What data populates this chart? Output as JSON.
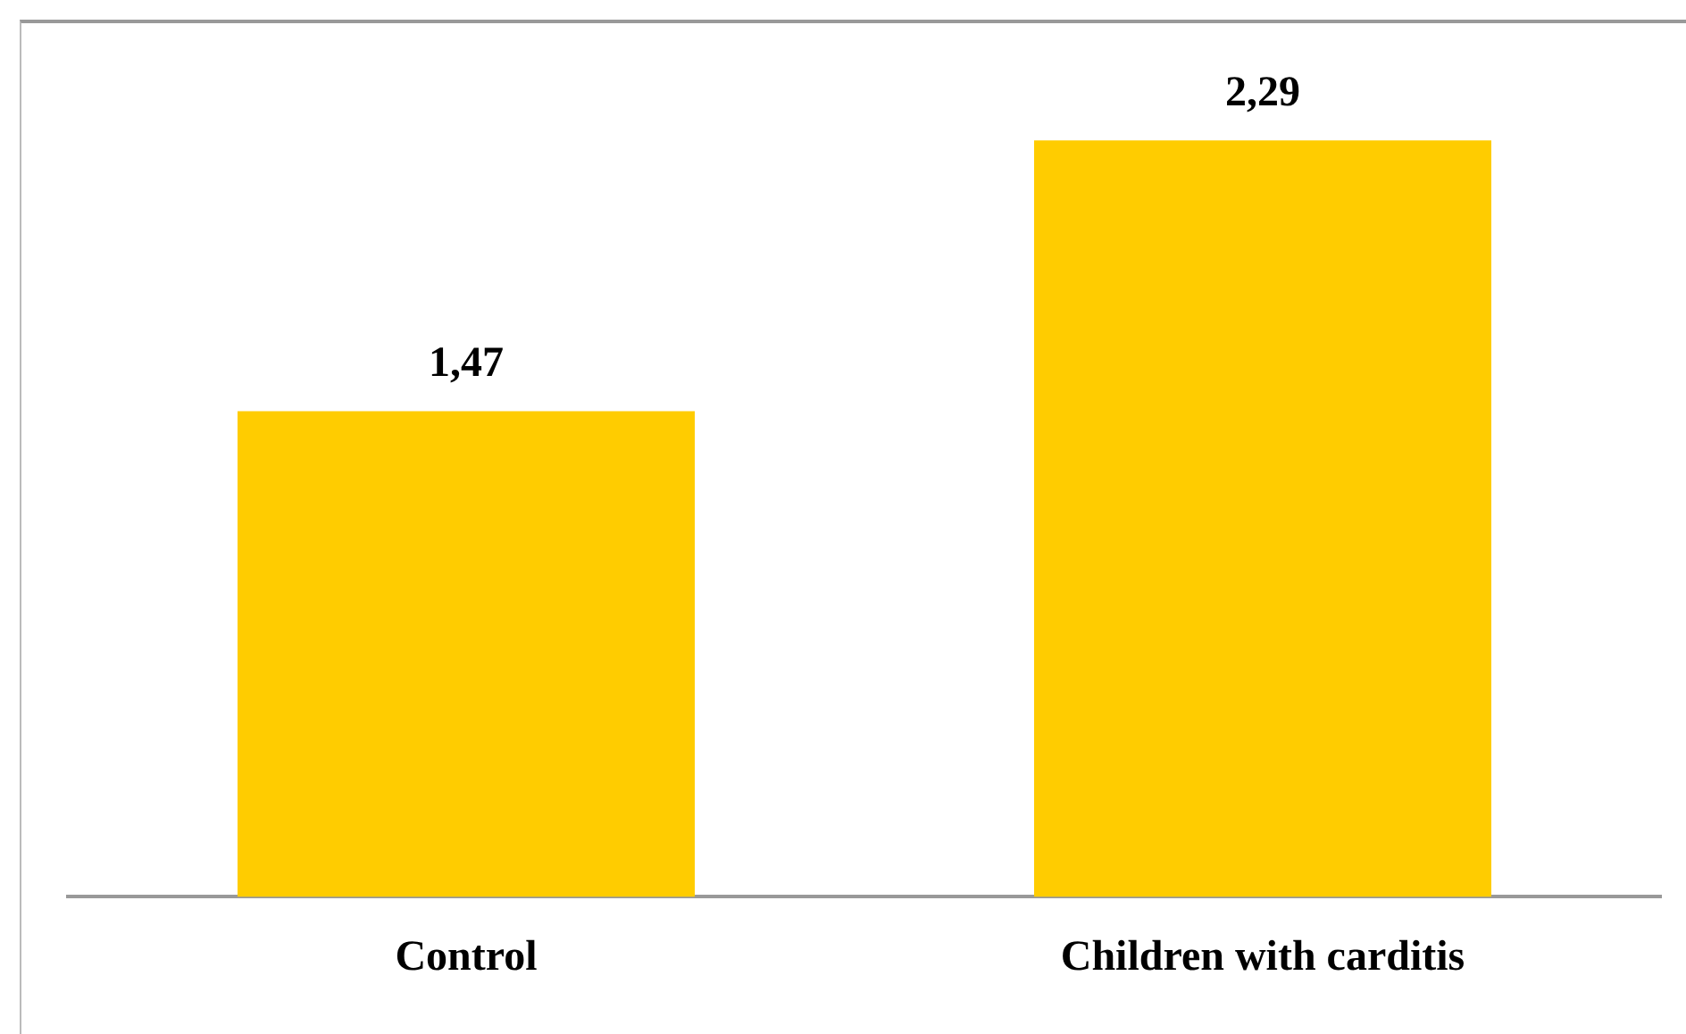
{
  "chart_data": {
    "type": "bar",
    "categories": [
      "Control",
      "Children with carditis"
    ],
    "values": [
      1.47,
      2.29
    ],
    "value_labels": [
      "1,47",
      "2,29"
    ],
    "color": "#ffcc00",
    "ylim": [
      0,
      2.65
    ],
    "grid": false,
    "legend": false
  }
}
